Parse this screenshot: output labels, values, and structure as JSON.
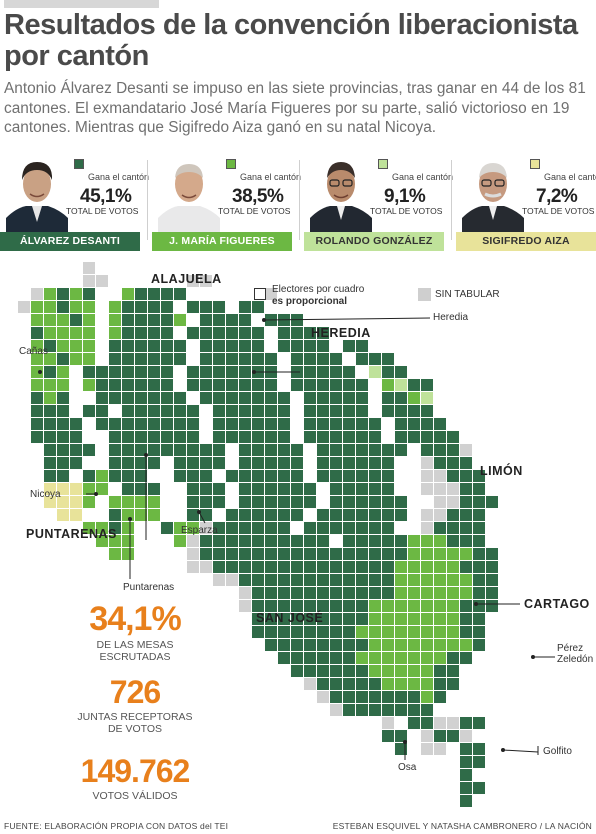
{
  "title": "Resultados de la convención liberacionista por cantón",
  "dek": "Antonio Álvarez Desanti se impuso en las siete provincias, tras ganar en 44 de los 81 cantones. El exmandatario José María Figueres por su parte, salió victorioso en 19 cantones. Mientras que Sigifredo Aiza ganó en su natal Nicoya.",
  "candidates": [
    {
      "name": "ÁLVAREZ DESANTI",
      "wins": "Gana el cantón",
      "pct": "45,1%",
      "total": "TOTAL DE VOTOS",
      "color": "#2f6b48",
      "bar_color": "#2f6b48",
      "text_color": "#ffffff"
    },
    {
      "name": "J. MARÍA FIGUERES",
      "wins": "Gana el cantón",
      "pct": "38,5%",
      "total": "TOTAL DE VOTOS",
      "color": "#6cb843",
      "bar_color": "#6cb843",
      "text_color": "#ffffff"
    },
    {
      "name": "ROLANDO GONZÁLEZ",
      "wins": "Gana el cantón",
      "pct": "9,1%",
      "total": "TOTAL DE VOTOS",
      "color": "#bfe29a",
      "bar_color": "#bfe29a",
      "text_color": "#333333"
    },
    {
      "name": "SIGIFREDO AIZA",
      "wins": "Gana el cantón",
      "pct": "7,2%",
      "total": "TOTAL DE VOTOS",
      "color": "#e8e39a",
      "bar_color": "#e8e39a",
      "text_color": "#333333"
    }
  ],
  "legend": {
    "proportional_line1": "Electores por cuadro",
    "proportional_line2": "es proporcional",
    "no_data": "SIN TABULAR",
    "no_data_color": "#cfcfcf"
  },
  "provinces": {
    "alajuela": "ALAJUELA",
    "heredia": "HEREDIA",
    "limon": "LIMÓN",
    "puntarenas": "PUNTARENAS",
    "cartago": "CARTAGO",
    "san_jose": "SAN JOSÉ"
  },
  "cantons": {
    "canas": "Cañas",
    "heredia": "Heredia",
    "nicoya": "Nicoya",
    "esparza": "Esparza",
    "puntarenas": "Puntarenas",
    "perez1": "Pérez",
    "perez2": "Zeledón",
    "golfito": "Golfito",
    "osa": "Osa"
  },
  "stats": [
    {
      "value": "34,1%",
      "caption1": "DE LAS MESAS",
      "caption2": "ESCRUTADAS"
    },
    {
      "value": "726",
      "caption1": "JUNTAS RECEPTORAS",
      "caption2": "DE VOTOS"
    },
    {
      "value": "149.762",
      "caption1": "VOTOS VÁLIDOS",
      "caption2": ""
    }
  ],
  "footer": {
    "source": "FUENTE: ELABORACIÓN PROPIA CON DATOS del TEI",
    "credits": "ESTEBAN ESQUIVEL Y NATASHA CAMBRONERO  /  LA NACIÓN"
  }
}
